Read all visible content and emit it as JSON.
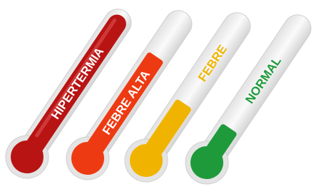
{
  "thermometers": [
    {
      "label": "HIPERTERMIA"
    },
    {
      "label": "FEBRE ALTA"
    },
    {
      "label": "FEBRE"
    },
    {
      "label": "NORMAL"
    }
  ]
}
